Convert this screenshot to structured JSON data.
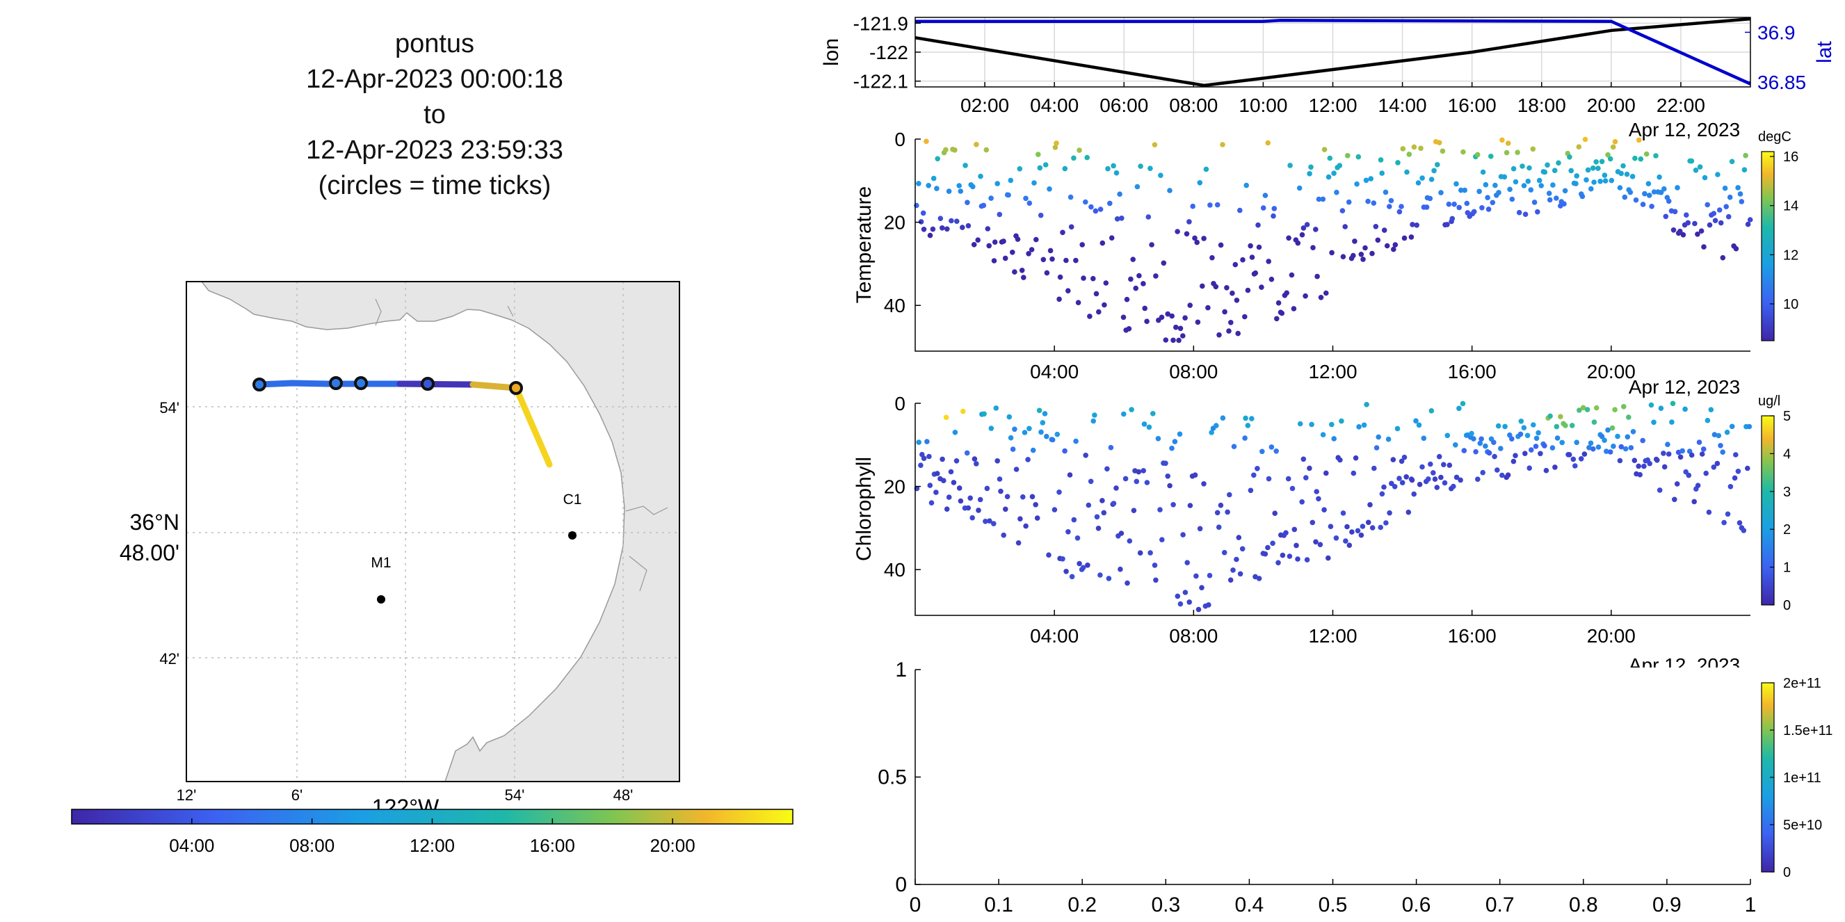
{
  "title": {
    "platform": "pontus",
    "start": "12-Apr-2023 00:00:18",
    "to": "to",
    "end": "12-Apr-2023 23:59:33",
    "note": "(circles = time ticks)"
  },
  "map": {
    "lon_labels": [
      "12'",
      "6'",
      "54'",
      "48'"
    ],
    "lon_main_label": "122°W",
    "lat_labels": [
      "54'",
      "42'"
    ],
    "lat_main_label_deg": "36°N",
    "lat_main_label_min": "48.00'",
    "stations": [
      {
        "name": "C1"
      },
      {
        "name": "M1"
      }
    ],
    "time_colorbar_ticks": [
      "04:00",
      "08:00",
      "12:00",
      "16:00",
      "20:00"
    ]
  },
  "colors": {
    "lon_line": "#000000",
    "lat_line": "#0000cc",
    "land": "#e6e6e6",
    "grid": "#d0d0d0"
  },
  "chart_data": [
    {
      "type": "line",
      "panel": "position",
      "x_ticks": [
        "02:00",
        "04:00",
        "06:00",
        "08:00",
        "10:00",
        "12:00",
        "14:00",
        "16:00",
        "18:00",
        "20:00",
        "22:00"
      ],
      "x_date_label": "Apr 12, 2023",
      "ylabel_left": "lon",
      "ylabel_right": "lat",
      "y_left_ticks": [
        "-121.9",
        "-122",
        "-122.1"
      ],
      "y_right_ticks": [
        "36.9",
        "36.85"
      ],
      "ylim_left": [
        -122.12,
        -121.88
      ],
      "ylim_right": [
        36.845,
        36.915
      ],
      "xlim_hours": [
        0,
        24
      ],
      "series": [
        {
          "name": "lon",
          "axis": "left",
          "x": [
            0,
            8.3,
            10,
            16,
            20,
            24
          ],
          "values": [
            -121.95,
            -122.115,
            -122.09,
            -122.0,
            -121.925,
            -121.885
          ]
        },
        {
          "name": "lat",
          "axis": "right",
          "x": [
            0,
            10,
            10.5,
            20,
            24
          ],
          "values": [
            36.911,
            36.911,
            36.912,
            36.911,
            36.848
          ]
        }
      ]
    },
    {
      "type": "scatter",
      "panel": "temperature",
      "ylabel": "Temperature",
      "x_ticks": [
        "04:00",
        "08:00",
        "12:00",
        "16:00",
        "20:00"
      ],
      "x_date_label": "Apr 12, 2023",
      "y_ticks": [
        "0",
        "20",
        "40"
      ],
      "ylim": [
        0,
        51
      ],
      "colorbar_label": "degC",
      "colorbar_ticks": [
        "16",
        "14",
        "12",
        "10"
      ],
      "clim": [
        8.5,
        16.2
      ],
      "depth_envelope": {
        "x": [
          0,
          2,
          4,
          6,
          8.2,
          9.5,
          12,
          14,
          16,
          18,
          20,
          22,
          24
        ],
        "max_depth": [
          22,
          30,
          40,
          47,
          50,
          47,
          37,
          27,
          19,
          18,
          14,
          24,
          32
        ]
      }
    },
    {
      "type": "scatter",
      "panel": "chlorophyll",
      "ylabel": "Chlorophyll",
      "x_ticks": [
        "04:00",
        "08:00",
        "12:00",
        "16:00",
        "20:00"
      ],
      "x_date_label": "Apr 12, 2023",
      "y_ticks": [
        "0",
        "20",
        "40"
      ],
      "ylim": [
        0,
        51
      ],
      "colorbar_label": "ug/l",
      "colorbar_ticks": [
        "5",
        "4",
        "3",
        "2",
        "1",
        "0"
      ],
      "clim": [
        0,
        5
      ],
      "depth_envelope": {
        "x": [
          0,
          2,
          4,
          6,
          8.2,
          9.5,
          12,
          14,
          16,
          18,
          20,
          22,
          24
        ],
        "max_depth": [
          22,
          30,
          40,
          47,
          50,
          47,
          37,
          27,
          19,
          18,
          14,
          24,
          32
        ]
      }
    },
    {
      "type": "scatter",
      "panel": "empty",
      "x_ticks": [
        "0",
        "0.1",
        "0.2",
        "0.3",
        "0.4",
        "0.5",
        "0.6",
        "0.7",
        "0.8",
        "0.9",
        "1"
      ],
      "y_ticks": [
        "1",
        "0.5",
        "0"
      ],
      "xlim": [
        0,
        1
      ],
      "ylim": [
        0,
        1
      ],
      "colorbar_ticks": [
        "2e+11",
        "1.5e+11",
        "1e+11",
        "5e+10",
        "0"
      ],
      "clim": [
        0,
        200000000000
      ]
    }
  ]
}
